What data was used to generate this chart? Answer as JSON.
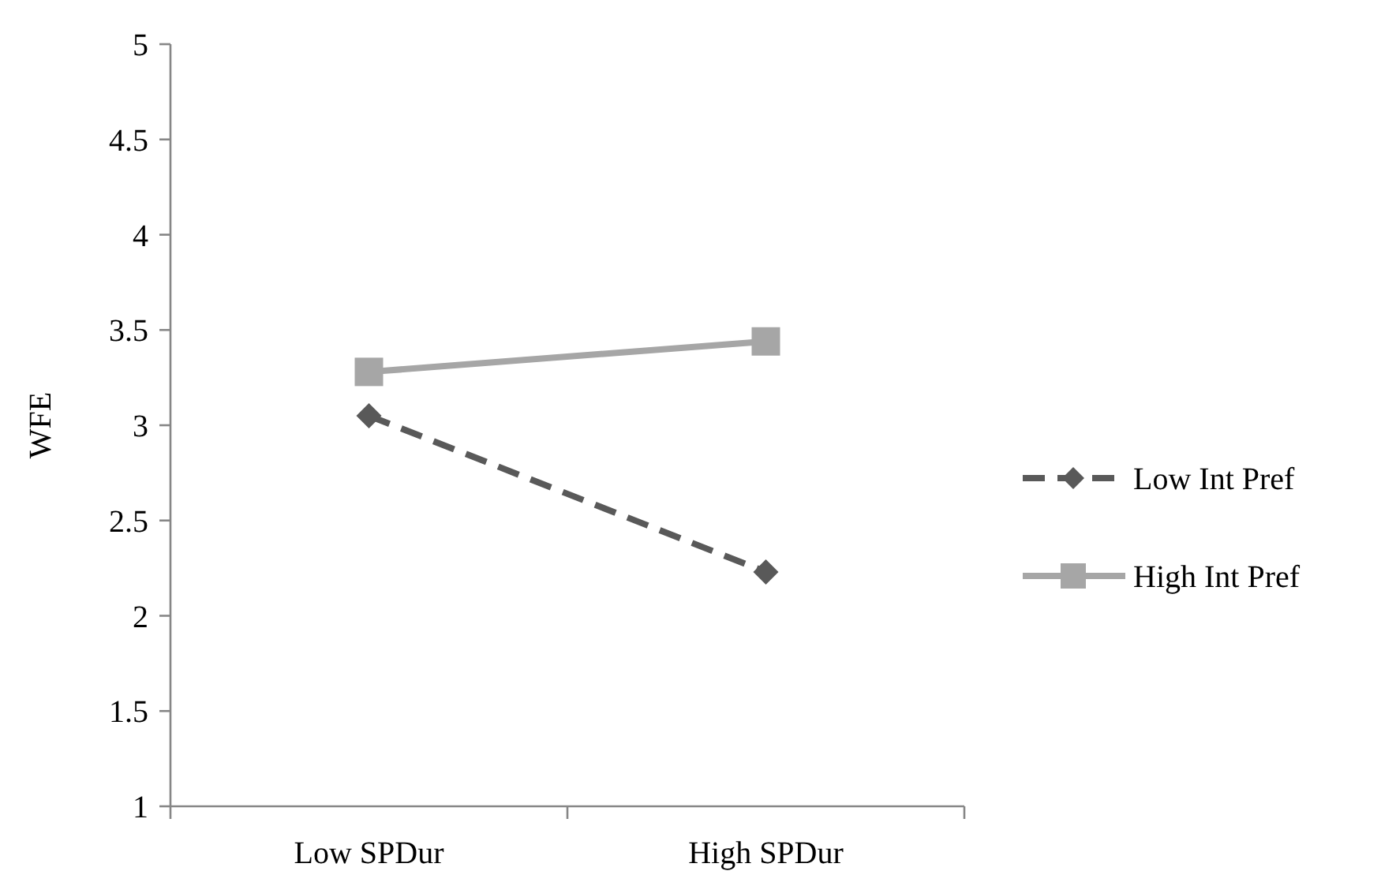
{
  "chart_data": {
    "type": "line",
    "ylabel": "WFE",
    "categories": [
      "Low SPDur",
      "High SPDur"
    ],
    "ylim": [
      1,
      5
    ],
    "yticks": [
      1,
      1.5,
      2,
      2.5,
      3,
      3.5,
      4,
      4.5,
      5
    ],
    "grid": false,
    "legend": "right",
    "series": [
      {
        "name": "Low Int Pref",
        "color": "#595959",
        "values": [
          3.05,
          2.23
        ],
        "marker": "diamond",
        "line_style": "dashed"
      },
      {
        "name": "High Int Pref",
        "color": "#a6a6a6",
        "values": [
          3.28,
          3.44
        ],
        "marker": "square",
        "line_style": "solid"
      }
    ]
  }
}
